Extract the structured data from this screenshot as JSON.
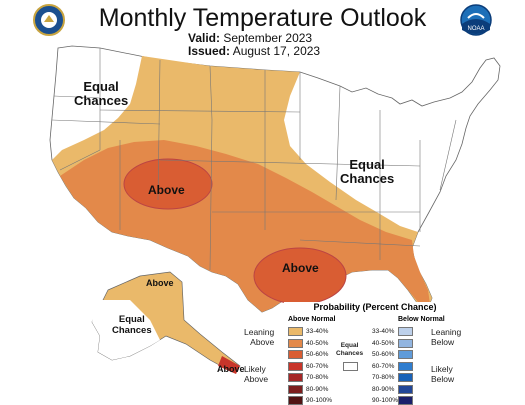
{
  "header": {
    "title": "Monthly Temperature Outlook",
    "valid_label": "Valid:",
    "valid_value": "September 2023",
    "issued_label": "Issued:",
    "issued_value": "August 17, 2023"
  },
  "logos": {
    "left": "doc-seal-icon",
    "right": "noaa-logo-icon",
    "right_text": "NOAA"
  },
  "map_labels": {
    "equal_nw_1": "Equal",
    "equal_nw_2": "Chances",
    "equal_east_1": "Equal",
    "equal_east_2": "Chances",
    "above_sw": "Above",
    "above_gulf": "Above",
    "above_ak": "Above",
    "equal_ak_1": "Equal",
    "equal_ak_2": "Chances",
    "above_ak_se": "Above"
  },
  "colors": {
    "above_33_40": "#eab96a",
    "above_40_50": "#e3894a",
    "above_50_60": "#d95d33",
    "above_60_70": "#c8352a",
    "above_70_80": "#a52727",
    "above_80_90": "#7d1e1e",
    "above_90_100": "#521313",
    "below_33_40": "#bdd0ea",
    "below_40_50": "#92b5e0",
    "below_50_60": "#5f9bd9",
    "below_60_70": "#2f7dcf",
    "below_70_80": "#1962b8",
    "below_80_90": "#214698",
    "below_90_100": "#1a1f6b",
    "equal": "#ffffff"
  },
  "legend": {
    "title": "Probability (Percent Chance)",
    "above_header": "Above Normal",
    "below_header": "Below Normal",
    "equal_label_1": "Equal",
    "equal_label_2": "Chances",
    "leaning_above_1": "Leaning",
    "leaning_above_2": "Above",
    "likely_above_1": "Likely",
    "likely_above_2": "Above",
    "leaning_below_1": "Leaning",
    "leaning_below_2": "Below",
    "likely_below_1": "Likely",
    "likely_below_2": "Below",
    "ranges": [
      "33-40%",
      "40-50%",
      "50-60%",
      "60-70%",
      "70-80%",
      "80-90%",
      "90-100%"
    ]
  }
}
